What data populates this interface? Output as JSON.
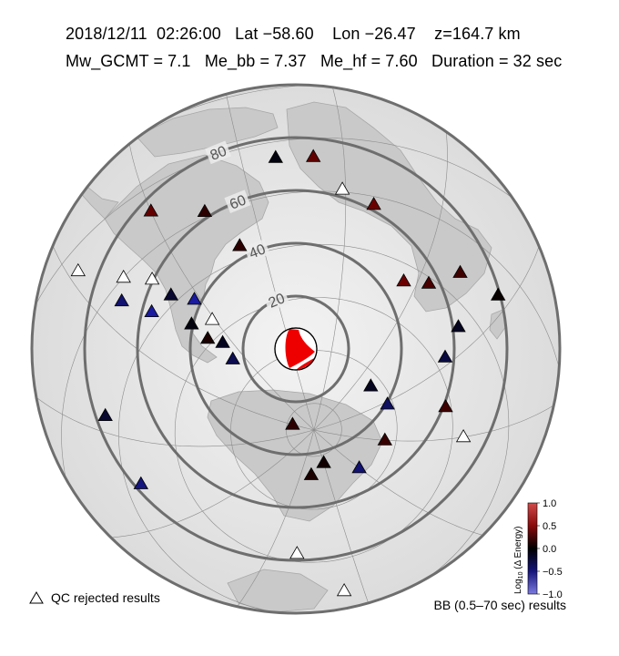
{
  "header": {
    "date": "2018/12/11",
    "time": "02:26:00",
    "lat": "Lat −58.60",
    "lon": "Lon −26.47",
    "depth": "z=164.7 km",
    "mw": "Mw_GCMT = 7.1",
    "me_bb": "Me_bb = 7.37",
    "me_hf": "Me_hf = 7.60",
    "duration": "Duration = 32 sec"
  },
  "map": {
    "distance_rings_deg": [
      20,
      40,
      60,
      80,
      100
    ],
    "ring_labels": [
      "20",
      "40",
      "60",
      "80"
    ],
    "center_lat": -58.6,
    "center_lon": -26.47
  },
  "legend": {
    "qc_rejected_label": "QC rejected results",
    "bb_label": "BB (0.5–70 sec) results"
  },
  "colorbar": {
    "title": "Log",
    "title_sub": "10",
    "title_rest": " (Δ Energy)",
    "ticks": [
      "1.0",
      "0.5",
      "0.0",
      "−0.5",
      "−1.0"
    ],
    "range": [
      -1.0,
      1.0
    ],
    "colors": {
      "high": "#b30000",
      "mid": "#000000",
      "low": "#1a1aa0"
    }
  },
  "stations": [
    {
      "lon": -60,
      "lat": 12,
      "v": 0.55
    },
    {
      "lon": -77,
      "lat": 0,
      "v": null
    },
    {
      "lon": -87,
      "lat": 14,
      "v": null
    },
    {
      "lon": -82,
      "lat": -5,
      "v": -0.7
    },
    {
      "lon": -70,
      "lat": -8,
      "v": null
    },
    {
      "lon": -77,
      "lat": -16,
      "v": -1.0
    },
    {
      "lon": -68,
      "lat": -17,
      "v": -0.3
    },
    {
      "lon": -62,
      "lat": -24,
      "v": -1.0
    },
    {
      "lon": -69,
      "lat": -30,
      "v": -0.1
    },
    {
      "lon": -61,
      "lat": -34,
      "v": null
    },
    {
      "lon": -68,
      "lat": -38,
      "v": 0.15
    },
    {
      "lon": -64,
      "lat": -43,
      "v": -0.2
    },
    {
      "lon": -66,
      "lat": -50,
      "v": -0.5
    },
    {
      "lon": -45,
      "lat": 2,
      "v": 0.25
    },
    {
      "lon": -38,
      "lat": -15,
      "v": 0.25
    },
    {
      "lon": -20,
      "lat": 14,
      "v": -0.1
    },
    {
      "lon": -9,
      "lat": 13,
      "v": 0.55
    },
    {
      "lon": -1,
      "lat": 1,
      "v": null
    },
    {
      "lon": 9,
      "lat": -3,
      "v": 0.6
    },
    {
      "lon": 25,
      "lat": -26,
      "v": 0.6
    },
    {
      "lon": 34,
      "lat": -22,
      "v": 0.4
    },
    {
      "lon": 42,
      "lat": -12,
      "v": 0.35
    },
    {
      "lon": 56,
      "lat": -8,
      "v": 0.05
    },
    {
      "lon": 52,
      "lat": -26,
      "v": -0.2
    },
    {
      "lon": 57,
      "lat": -36,
      "v": -0.4
    },
    {
      "lon": 76,
      "lat": -42,
      "v": 0.35
    },
    {
      "lon": 90,
      "lat": -36,
      "v": null
    },
    {
      "lon": 42,
      "lat": -64,
      "v": -0.2
    },
    {
      "lon": 62,
      "lat": -62,
      "v": -0.6
    },
    {
      "lon": 90,
      "lat": -64,
      "v": 0.3
    },
    {
      "lon": -90,
      "lat": -82,
      "v": 0.25
    },
    {
      "lon": 150,
      "lat": -77,
      "v": 0.1
    },
    {
      "lon": 120,
      "lat": -68,
      "v": -0.7
    },
    {
      "lon": 168,
      "lat": -73,
      "v": 0.15
    },
    {
      "lon": 170,
      "lat": -43,
      "v": null
    },
    {
      "lon": 155,
      "lat": -28,
      "v": null
    },
    {
      "lon": -135,
      "lat": -25,
      "v": -0.8
    },
    {
      "lon": -115,
      "lat": -15,
      "v": -0.3
    }
  ]
}
